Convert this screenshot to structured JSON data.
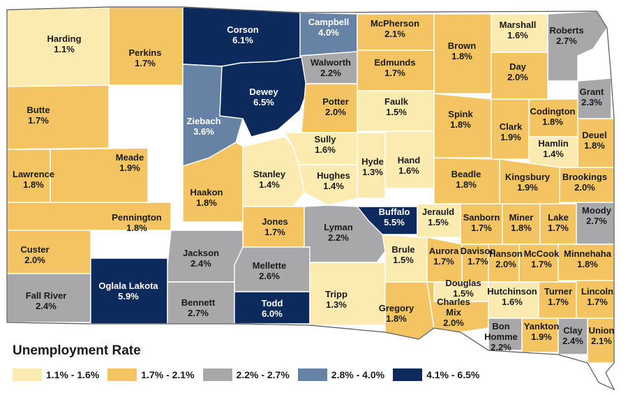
{
  "legend": {
    "title": "Unemployment Rate",
    "bins": [
      {
        "label": "1.1% - 1.6%",
        "color": "#fcebb0"
      },
      {
        "label": "1.7% - 2.1%",
        "color": "#f5c462"
      },
      {
        "label": "2.2% - 2.7%",
        "color": "#a8a8ab"
      },
      {
        "label": "2.8% - 4.0%",
        "color": "#6683a6"
      },
      {
        "label": "4.1% - 6.5%",
        "color": "#0d2a5c"
      }
    ]
  },
  "counties": [
    {
      "name": "Harding",
      "rate": "1.1%"
    },
    {
      "name": "Perkins",
      "rate": "1.7%"
    },
    {
      "name": "Corson",
      "rate": "6.1%"
    },
    {
      "name": "Campbell",
      "rate": "4.0%"
    },
    {
      "name": "McPherson",
      "rate": "2.1%"
    },
    {
      "name": "Brown",
      "rate": "1.8%"
    },
    {
      "name": "Marshall",
      "rate": "1.6%"
    },
    {
      "name": "Roberts",
      "rate": "2.7%"
    },
    {
      "name": "Walworth",
      "rate": "2.2%"
    },
    {
      "name": "Edmunds",
      "rate": "1.7%"
    },
    {
      "name": "Day",
      "rate": "2.0%"
    },
    {
      "name": "Butte",
      "rate": "1.7%"
    },
    {
      "name": "Ziebach",
      "rate": "3.6%"
    },
    {
      "name": "Dewey",
      "rate": "6.5%"
    },
    {
      "name": "Potter",
      "rate": "2.0%"
    },
    {
      "name": "Faulk",
      "rate": "1.5%"
    },
    {
      "name": "Spink",
      "rate": "1.8%"
    },
    {
      "name": "Clark",
      "rate": "1.9%"
    },
    {
      "name": "Codington",
      "rate": "1.8%"
    },
    {
      "name": "Grant",
      "rate": "2.3%"
    },
    {
      "name": "Hamlin",
      "rate": "1.4%"
    },
    {
      "name": "Deuel",
      "rate": "1.8%"
    },
    {
      "name": "Meade",
      "rate": "1.9%"
    },
    {
      "name": "Lawrence",
      "rate": "1.8%"
    },
    {
      "name": "Sully",
      "rate": "1.6%"
    },
    {
      "name": "Hyde",
      "rate": "1.3%"
    },
    {
      "name": "Hand",
      "rate": "1.6%"
    },
    {
      "name": "Stanley",
      "rate": "1.4%"
    },
    {
      "name": "Hughes",
      "rate": "1.4%"
    },
    {
      "name": "Haakon",
      "rate": "1.8%"
    },
    {
      "name": "Beadle",
      "rate": "1.8%"
    },
    {
      "name": "Kingsbury",
      "rate": "1.9%"
    },
    {
      "name": "Brookings",
      "rate": "2.0%"
    },
    {
      "name": "Pennington",
      "rate": "1.8%"
    },
    {
      "name": "Jones",
      "rate": "1.7%"
    },
    {
      "name": "Lyman",
      "rate": "2.2%"
    },
    {
      "name": "Buffalo",
      "rate": "5.5%"
    },
    {
      "name": "Jerauld",
      "rate": "1.5%"
    },
    {
      "name": "Sanborn",
      "rate": "1.7%"
    },
    {
      "name": "Miner",
      "rate": "1.8%"
    },
    {
      "name": "Lake",
      "rate": "1.7%"
    },
    {
      "name": "Moody",
      "rate": "2.7%"
    },
    {
      "name": "Custer",
      "rate": "2.0%"
    },
    {
      "name": "Jackson",
      "rate": "2.4%"
    },
    {
      "name": "Mellette",
      "rate": "2.6%"
    },
    {
      "name": "Brule",
      "rate": "1.5%"
    },
    {
      "name": "Aurora",
      "rate": "1.7%"
    },
    {
      "name": "Davison",
      "rate": "1.7%"
    },
    {
      "name": "Hanson",
      "rate": "2.0%"
    },
    {
      "name": "McCook",
      "rate": "1.7%"
    },
    {
      "name": "Minnehaha",
      "rate": "1.8%"
    },
    {
      "name": "Fall River",
      "rate": "2.4%"
    },
    {
      "name": "Oglala Lakota",
      "rate": "5.9%"
    },
    {
      "name": "Bennett",
      "rate": "2.7%"
    },
    {
      "name": "Todd",
      "rate": "6.0%"
    },
    {
      "name": "Tripp",
      "rate": "1.3%"
    },
    {
      "name": "Gregory",
      "rate": "1.8%"
    },
    {
      "name": "Charles Mix",
      "rate": "2.0%"
    },
    {
      "name": "Douglas",
      "rate": "1.5%"
    },
    {
      "name": "Hutchinson",
      "rate": "1.6%"
    },
    {
      "name": "Turner",
      "rate": "1.7%"
    },
    {
      "name": "Lincoln",
      "rate": "1.7%"
    },
    {
      "name": "Bon Homme",
      "rate": "2.2%"
    },
    {
      "name": "Yankton",
      "rate": "1.9%"
    },
    {
      "name": "Clay",
      "rate": "2.4%"
    },
    {
      "name": "Union",
      "rate": "2.1%"
    }
  ]
}
